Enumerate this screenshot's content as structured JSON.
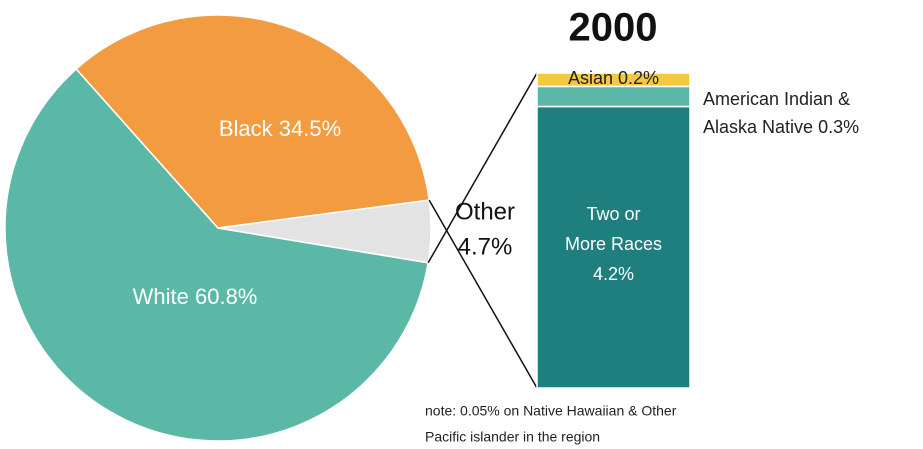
{
  "chart_data": {
    "type": "pie-of-bar",
    "title": "2000",
    "categories": [
      "White",
      "Black",
      "Other"
    ],
    "values": [
      60.8,
      34.5,
      4.7
    ],
    "value_labels": [
      "60.8%",
      "34.5%",
      "4.7%"
    ],
    "colors": [
      "#5cb8a6",
      "#f29b40",
      "#e3e3e3"
    ],
    "breakdown": {
      "categories": [
        "Two or More Races",
        "American Indian & Alaska Native",
        "Asian"
      ],
      "values": [
        4.2,
        0.3,
        0.2
      ],
      "value_labels": [
        "4.2%",
        "0.3%",
        "0.2%"
      ],
      "colors": [
        "#1f7f7f",
        "#5cb8a6",
        "#f5c842"
      ]
    },
    "note": "note: 0.05% on Native Hawaiian & Other Pacific islander in the region"
  }
}
